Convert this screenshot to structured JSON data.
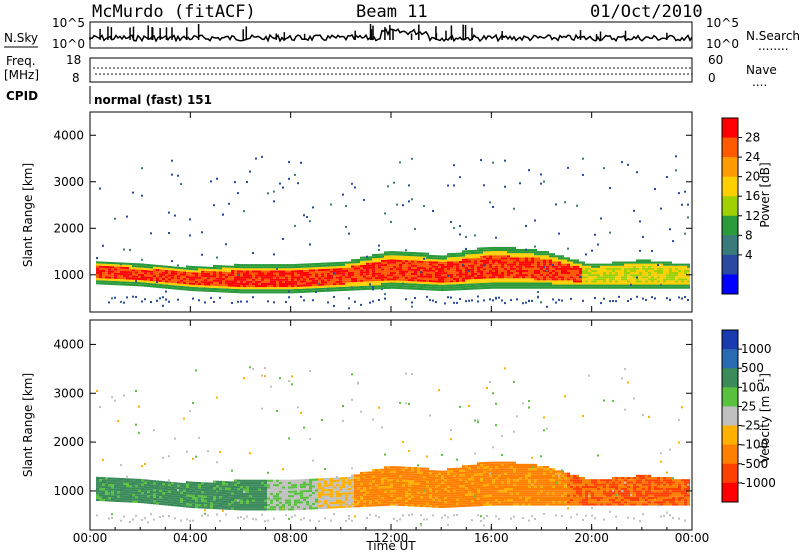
{
  "header": {
    "station": "McMurdo (fitACF)",
    "beam": "Beam 11",
    "date": "01/Oct/2010"
  },
  "top_panel": {
    "left_label": "N.Sky",
    "left_ticks": [
      "10^5",
      "10^0"
    ],
    "right_ticks": [
      "10^5",
      "10^0"
    ],
    "right_label": "N.Search",
    "right_legend": "........"
  },
  "freq_panel": {
    "label_line1": "Freq.",
    "label_line2": "[MHz]",
    "left_ticks": [
      "18",
      "8"
    ],
    "right_ticks": [
      "60",
      "0"
    ],
    "right_label": "Nave",
    "right_legend": "...."
  },
  "cpid_panel": {
    "label": "CPID",
    "mode_text": "normal (fast) 151"
  },
  "chart_data": [
    {
      "type": "heatmap",
      "title": "",
      "ylabel": "Slant Range [km]",
      "xlabel": "",
      "ylim": [
        200,
        4500
      ],
      "y_ticks": [
        "4000",
        "3000",
        "2000",
        "1000"
      ],
      "colorbar": {
        "label": "Power [dB]",
        "ticks": [
          "28",
          "24",
          "20",
          "16",
          "12",
          "8",
          "4"
        ],
        "colors": [
          "#ff0000",
          "#ff5a00",
          "#ff9a00",
          "#ffd000",
          "#9fd000",
          "#2a9a3a",
          "#3a7a7a",
          "#2a4aa0",
          "#0000ff"
        ]
      },
      "main_echo_band": [
        {
          "hour": 0,
          "lower_km": 800,
          "upper_km": 1300
        },
        {
          "hour": 2,
          "lower_km": 750,
          "upper_km": 1200
        },
        {
          "hour": 4,
          "lower_km": 650,
          "upper_km": 1150
        },
        {
          "hour": 6,
          "lower_km": 600,
          "upper_km": 1200
        },
        {
          "hour": 8,
          "lower_km": 600,
          "upper_km": 1200
        },
        {
          "hour": 10,
          "lower_km": 650,
          "upper_km": 1250
        },
        {
          "hour": 12,
          "lower_km": 700,
          "upper_km": 1500
        },
        {
          "hour": 14,
          "lower_km": 650,
          "upper_km": 1400
        },
        {
          "hour": 16,
          "lower_km": 700,
          "upper_km": 1600
        },
        {
          "hour": 18,
          "lower_km": 700,
          "upper_km": 1500
        },
        {
          "hour": 20,
          "lower_km": 700,
          "upper_km": 1200
        },
        {
          "hour": 22,
          "lower_km": 700,
          "upper_km": 1300
        },
        {
          "hour": 24,
          "lower_km": 700,
          "upper_km": 1200
        }
      ]
    },
    {
      "type": "heatmap",
      "title": "",
      "ylabel": "Slant Range [km]",
      "xlabel": "Time UT",
      "ylim": [
        200,
        4500
      ],
      "y_ticks": [
        "4000",
        "3000",
        "2000",
        "1000"
      ],
      "x_ticks": [
        "00:00",
        "04:00",
        "08:00",
        "12:00",
        "16:00",
        "20:00",
        "00:00"
      ],
      "colorbar": {
        "label": "Velocity [m s^-1]",
        "label_main": "Velocity [m s",
        "label_sup": "-1",
        "label_end": "]",
        "ticks": [
          "1000",
          "500",
          "100",
          "25",
          "-25",
          "-100",
          "-500",
          "-1000"
        ],
        "colors": [
          "#1a3ab0",
          "#2a6ab0",
          "#3a8a5a",
          "#5ac040",
          "#c0c0c0",
          "#ffb000",
          "#ff8000",
          "#ff4000",
          "#ff0000"
        ]
      },
      "main_echo_band": [
        {
          "hour": 0,
          "lower_km": 800,
          "upper_km": 1300
        },
        {
          "hour": 2,
          "lower_km": 750,
          "upper_km": 1200
        },
        {
          "hour": 4,
          "lower_km": 650,
          "upper_km": 1150
        },
        {
          "hour": 6,
          "lower_km": 600,
          "upper_km": 1200
        },
        {
          "hour": 8,
          "lower_km": 600,
          "upper_km": 1200
        },
        {
          "hour": 10,
          "lower_km": 650,
          "upper_km": 1250
        },
        {
          "hour": 12,
          "lower_km": 700,
          "upper_km": 1500
        },
        {
          "hour": 14,
          "lower_km": 650,
          "upper_km": 1400
        },
        {
          "hour": 16,
          "lower_km": 700,
          "upper_km": 1600
        },
        {
          "hour": 18,
          "lower_km": 700,
          "upper_km": 1500
        },
        {
          "hour": 20,
          "lower_km": 700,
          "upper_km": 1200
        },
        {
          "hour": 22,
          "lower_km": 700,
          "upper_km": 1300
        },
        {
          "hour": 24,
          "lower_km": 700,
          "upper_km": 1200
        }
      ]
    }
  ]
}
